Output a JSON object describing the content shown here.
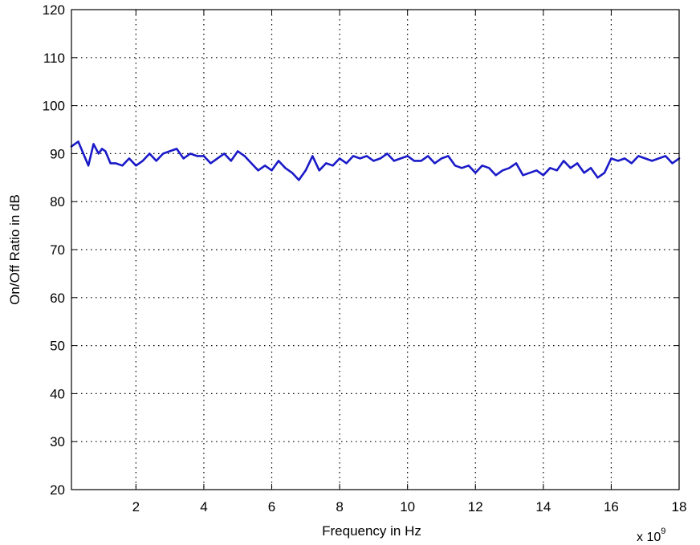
{
  "chart_data": {
    "type": "line",
    "title": "",
    "xlabel": "Frequency in Hz",
    "ylabel": "On/Off Ratio in dB",
    "x_exponent_label": {
      "base": "x 10",
      "exponent": "9"
    },
    "xlim": [
      0.1,
      18
    ],
    "ylim": [
      20,
      120
    ],
    "xticks": [
      2,
      4,
      6,
      8,
      10,
      12,
      14,
      16,
      18
    ],
    "yticks": [
      20,
      30,
      40,
      50,
      60,
      70,
      80,
      90,
      100,
      110,
      120
    ],
    "grid": true,
    "grid_style": "dotted",
    "line_color": "#1a1ac8",
    "series": [
      {
        "x": [
          0.1,
          0.3,
          0.45,
          0.6,
          0.75,
          0.9,
          1.0,
          1.1,
          1.25,
          1.4,
          1.6,
          1.8,
          2.0,
          2.2,
          2.4,
          2.6,
          2.8,
          3.0,
          3.2,
          3.4,
          3.6,
          3.8,
          4.0,
          4.2,
          4.4,
          4.6,
          4.8,
          5.0,
          5.2,
          5.4,
          5.6,
          5.8,
          6.0,
          6.2,
          6.4,
          6.6,
          6.8,
          7.0,
          7.2,
          7.4,
          7.6,
          7.8,
          8.0,
          8.2,
          8.4,
          8.6,
          8.8,
          9.0,
          9.2,
          9.4,
          9.6,
          9.8,
          10.0,
          10.2,
          10.4,
          10.6,
          10.8,
          11.0,
          11.2,
          11.4,
          11.6,
          11.8,
          12.0,
          12.2,
          12.4,
          12.6,
          12.8,
          13.0,
          13.2,
          13.4,
          13.6,
          13.8,
          14.0,
          14.2,
          14.4,
          14.6,
          14.8,
          15.0,
          15.2,
          15.4,
          15.6,
          15.8,
          16.0,
          16.2,
          16.4,
          16.6,
          16.8,
          17.0,
          17.2,
          17.4,
          17.6,
          17.8,
          18.0
        ],
        "y": [
          91.5,
          92.5,
          90.0,
          87.5,
          92.0,
          90.0,
          91.0,
          90.5,
          88.0,
          88.0,
          87.5,
          89.0,
          87.5,
          88.5,
          90.0,
          88.5,
          90.0,
          90.5,
          91.0,
          89.0,
          90.0,
          89.5,
          89.5,
          88.0,
          89.0,
          90.0,
          88.5,
          90.5,
          89.5,
          88.0,
          86.5,
          87.5,
          86.5,
          88.5,
          87.0,
          86.0,
          84.5,
          86.5,
          89.5,
          86.5,
          88.0,
          87.5,
          89.0,
          88.0,
          89.5,
          89.0,
          89.5,
          88.5,
          89.0,
          90.0,
          88.5,
          89.0,
          89.5,
          88.5,
          88.5,
          89.5,
          88.0,
          89.0,
          89.5,
          87.5,
          87.0,
          87.5,
          86.0,
          87.5,
          87.0,
          85.5,
          86.5,
          87.0,
          88.0,
          85.5,
          86.0,
          86.5,
          85.5,
          87.0,
          86.5,
          88.5,
          87.0,
          88.0,
          86.0,
          87.0,
          85.0,
          86.0,
          89.0,
          88.5,
          89.0,
          88.0,
          89.5,
          89.0,
          88.5,
          89.0,
          89.5,
          88.0,
          89.0
        ]
      }
    ]
  }
}
